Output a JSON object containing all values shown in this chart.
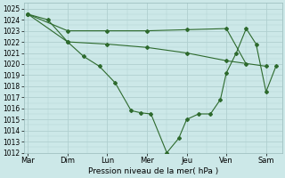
{
  "background_color": "#cce8e8",
  "grid_color": "#b0d0d0",
  "line_color": "#2d6a2d",
  "title": "Pression niveau de la mer( hPa )",
  "xlabel_days": [
    "Mar",
    "Dim",
    "Lun",
    "Mer",
    "Jeu",
    "Ven",
    "Sam"
  ],
  "ylim_min": 1012,
  "ylim_max": 1025.5,
  "xlim_min": -0.1,
  "xlim_max": 6.4,
  "line1_x": [
    0,
    1,
    2,
    3,
    4,
    5,
    5.5
  ],
  "line1_y": [
    1024.5,
    1023.0,
    1023.0,
    1023.0,
    1023.1,
    1023.2,
    1020.0
  ],
  "line2_x": [
    0,
    1,
    2,
    3,
    4,
    5,
    6
  ],
  "line2_y": [
    1024.5,
    1022.0,
    1021.8,
    1021.5,
    1021.0,
    1020.3,
    1019.8
  ],
  "line3_x": [
    0,
    0.5,
    1,
    1.4,
    1.8,
    2.2,
    2.6,
    2.85,
    3.1,
    3.5,
    3.8,
    4.0,
    4.3,
    4.6,
    4.85,
    5.0,
    5.25,
    5.5,
    5.75,
    6.0,
    6.25
  ],
  "line3_y": [
    1024.5,
    1024.0,
    1022.0,
    1020.7,
    1019.8,
    1018.3,
    1015.8,
    1015.6,
    1015.5,
    1012.0,
    1013.3,
    1015.0,
    1015.5,
    1015.5,
    1016.8,
    1019.2,
    1021.0,
    1023.2,
    1021.8,
    1017.5,
    1019.8
  ],
  "marker_size": 2.0,
  "line_width": 0.8,
  "y_tick_fontsize": 5.5,
  "x_tick_fontsize": 6.0,
  "xlabel_fontsize": 6.5
}
